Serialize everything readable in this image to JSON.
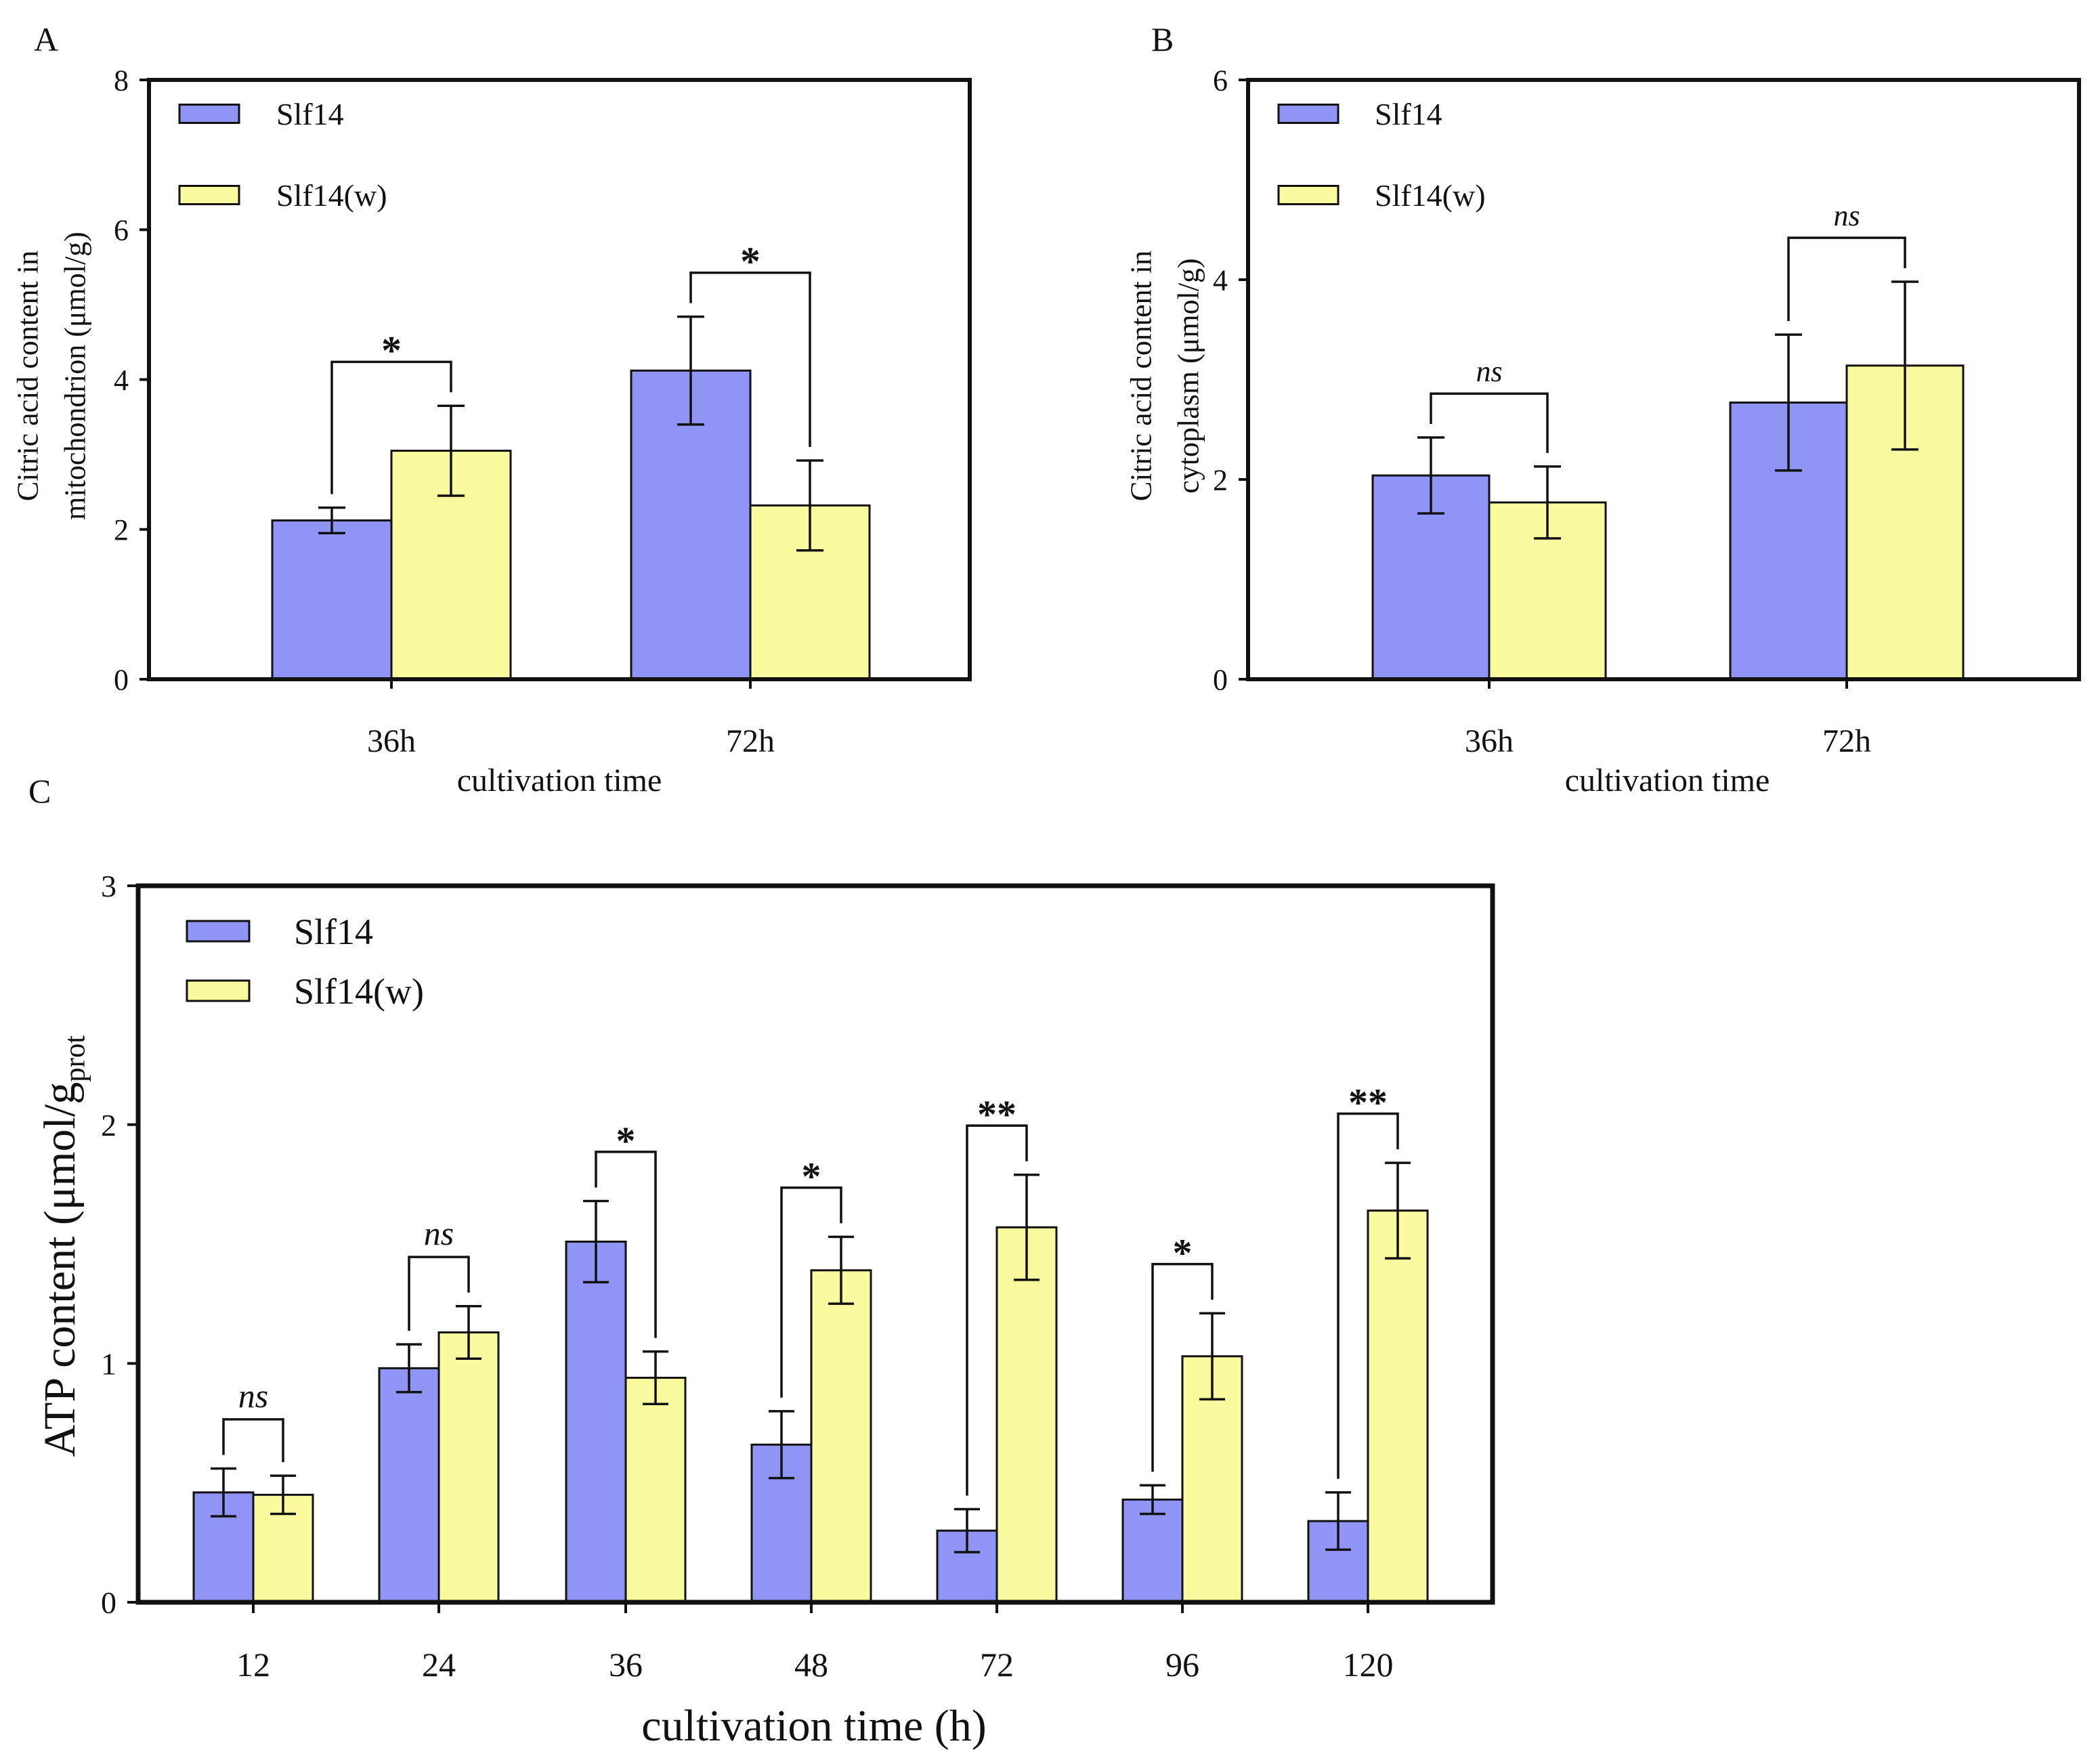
{
  "figure": {
    "colors": {
      "slf14": "#9094f4",
      "slf14w": "#fafa9e",
      "axis": "#111111"
    }
  },
  "chart_data": [
    {
      "id": "A",
      "type": "bar",
      "panel_label": "A",
      "title": "",
      "xlabel": "cultivation time",
      "ylabel": [
        "Citric acid content in",
        "mitochondrion (μmol/g)"
      ],
      "categories": [
        "36h",
        "72h"
      ],
      "ylim": [
        0,
        8
      ],
      "yticks": [
        0,
        2,
        4,
        6,
        8
      ],
      "legend": {
        "position": "top-left",
        "entries": [
          "Slf14",
          "Slf14(w)"
        ]
      },
      "series": [
        {
          "name": "Slf14",
          "values": [
            2.12,
            4.12
          ],
          "errors": [
            0.17,
            0.72
          ]
        },
        {
          "name": "Slf14(w)",
          "values": [
            3.05,
            2.32
          ],
          "errors": [
            0.6,
            0.6
          ]
        }
      ],
      "significance": [
        "*",
        "*"
      ]
    },
    {
      "id": "B",
      "type": "bar",
      "panel_label": "B",
      "title": "",
      "xlabel": "cultivation time",
      "ylabel": [
        "Citric acid content in",
        "cytoplasm (μmol/g)"
      ],
      "categories": [
        "36h",
        "72h"
      ],
      "ylim": [
        0,
        6
      ],
      "yticks": [
        0,
        2,
        4,
        6
      ],
      "legend": {
        "position": "top-left",
        "entries": [
          "Slf14",
          "Slf14(w)"
        ]
      },
      "series": [
        {
          "name": "Slf14",
          "values": [
            2.04,
            2.77
          ],
          "errors": [
            0.38,
            0.68
          ]
        },
        {
          "name": "Slf14(w)",
          "values": [
            1.77,
            3.14
          ],
          "errors": [
            0.36,
            0.84
          ]
        }
      ],
      "significance": [
        "ns",
        "ns"
      ]
    },
    {
      "id": "C",
      "type": "bar",
      "panel_label": "C",
      "title": "",
      "xlabel": "cultivation time (h)",
      "ylabel": {
        "main": "ATP content (μmol/g",
        "sub": "prot"
      },
      "categories": [
        "12",
        "24",
        "36",
        "48",
        "72",
        "96",
        "120"
      ],
      "ylim": [
        0,
        3
      ],
      "yticks": [
        0,
        1,
        2,
        3
      ],
      "legend": {
        "position": "top-left",
        "entries": [
          "Slf14",
          "Slf14(w)"
        ]
      },
      "series": [
        {
          "name": "Slf14",
          "values": [
            0.46,
            0.98,
            1.51,
            0.66,
            0.3,
            0.43,
            0.34
          ],
          "errors": [
            0.1,
            0.1,
            0.17,
            0.14,
            0.09,
            0.06,
            0.12
          ]
        },
        {
          "name": "Slf14(w)",
          "values": [
            0.45,
            1.13,
            0.94,
            1.39,
            1.57,
            1.03,
            1.64
          ],
          "errors": [
            0.08,
            0.11,
            0.11,
            0.14,
            0.22,
            0.18,
            0.2
          ]
        }
      ],
      "significance": [
        "ns",
        "ns",
        "*",
        "*",
        "**",
        "*",
        "**"
      ]
    }
  ]
}
